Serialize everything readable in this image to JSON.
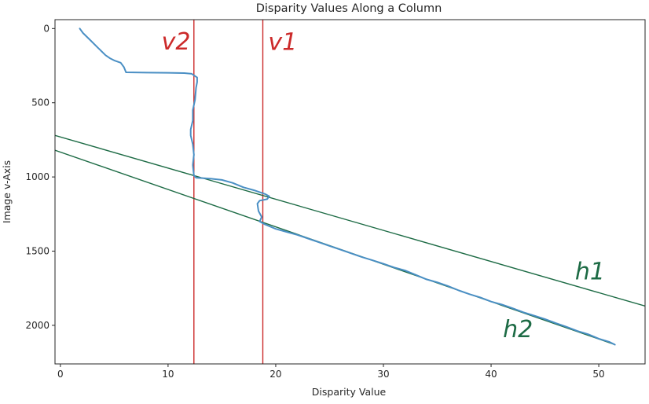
{
  "chart_data": {
    "type": "line",
    "title": "Disparity Values Along a Column",
    "xlabel": "Disparity Value",
    "ylabel": "Image v-Axis",
    "xlim": [
      -0.5,
      54.3
    ],
    "ylim": [
      2260,
      -60
    ],
    "y_inverted": true,
    "grid": false,
    "xticks": [
      0,
      10,
      20,
      30,
      40,
      50
    ],
    "yticks": [
      0,
      500,
      1000,
      1500,
      2000
    ],
    "series": [
      {
        "color": "#4a8fc4",
        "points": [
          [
            1.8,
            0
          ],
          [
            2.1,
            30
          ],
          [
            2.8,
            80
          ],
          [
            3.5,
            130
          ],
          [
            4.2,
            180
          ],
          [
            4.6,
            200
          ],
          [
            5.0,
            215
          ],
          [
            5.6,
            230
          ],
          [
            5.9,
            260
          ],
          [
            6.1,
            295
          ],
          [
            8.0,
            297
          ],
          [
            10.0,
            298
          ],
          [
            11.5,
            300
          ],
          [
            12.2,
            305
          ],
          [
            12.7,
            330
          ],
          [
            12.7,
            360
          ],
          [
            12.6,
            400
          ],
          [
            12.5,
            480
          ],
          [
            12.3,
            550
          ],
          [
            12.3,
            620
          ],
          [
            12.1,
            680
          ],
          [
            12.1,
            720
          ],
          [
            12.3,
            780
          ],
          [
            12.4,
            850
          ],
          [
            12.3,
            920
          ],
          [
            12.4,
            990
          ],
          [
            12.6,
            1005
          ],
          [
            14.0,
            1012
          ],
          [
            15.0,
            1020
          ],
          [
            16.0,
            1040
          ],
          [
            17.0,
            1070
          ],
          [
            18.0,
            1090
          ],
          [
            19.0,
            1115
          ],
          [
            19.4,
            1130
          ],
          [
            19.2,
            1150
          ],
          [
            18.5,
            1160
          ],
          [
            18.3,
            1180
          ],
          [
            18.4,
            1230
          ],
          [
            18.7,
            1270
          ],
          [
            18.5,
            1300
          ],
          [
            19.0,
            1320
          ],
          [
            20.0,
            1350
          ],
          [
            21.0,
            1370
          ],
          [
            22.0,
            1390
          ],
          [
            23.0,
            1415
          ],
          [
            24.0,
            1440
          ],
          [
            25.0,
            1465
          ],
          [
            26.0,
            1490
          ],
          [
            27.0,
            1515
          ],
          [
            28.0,
            1540
          ],
          [
            29.0,
            1562
          ],
          [
            30.0,
            1585
          ],
          [
            31.0,
            1610
          ],
          [
            32.0,
            1630
          ],
          [
            33.0,
            1660
          ],
          [
            34.0,
            1690
          ],
          [
            35.0,
            1710
          ],
          [
            36.0,
            1735
          ],
          [
            37.0,
            1765
          ],
          [
            38.0,
            1790
          ],
          [
            39.0,
            1812
          ],
          [
            40.0,
            1840
          ],
          [
            41.0,
            1860
          ],
          [
            42.0,
            1885
          ],
          [
            43.0,
            1912
          ],
          [
            44.0,
            1935
          ],
          [
            45.0,
            1958
          ],
          [
            46.0,
            1985
          ],
          [
            47.0,
            2010
          ],
          [
            48.0,
            2038
          ],
          [
            49.0,
            2060
          ],
          [
            50.0,
            2090
          ],
          [
            51.0,
            2112
          ],
          [
            51.5,
            2130
          ]
        ]
      }
    ],
    "reference_lines": [
      {
        "kind": "vertical",
        "x": 12.4,
        "color": "#cc2a2a",
        "label": "v2"
      },
      {
        "kind": "vertical",
        "x": 18.8,
        "color": "#cc2a2a",
        "label": "v1"
      },
      {
        "kind": "segment",
        "from": [
          -0.5,
          720
        ],
        "to": [
          54.3,
          1870
        ],
        "color": "#1d6b45",
        "label": "h1"
      },
      {
        "kind": "segment",
        "from": [
          -0.5,
          820
        ],
        "to": [
          51.5,
          2130
        ],
        "color": "#1d6b45",
        "label": "h2"
      }
    ],
    "annotations": [
      {
        "text": "v2",
        "x": 9.4,
        "y": 140,
        "color": "#cc2a2a"
      },
      {
        "text": "v1",
        "x": 19.3,
        "y": 145,
        "color": "#cc2a2a"
      },
      {
        "text": "h1",
        "x": 47.8,
        "y": 1690,
        "color": "#1d6b45"
      },
      {
        "text": "h2",
        "x": 41.1,
        "y": 2080,
        "color": "#1d6b45"
      }
    ]
  }
}
